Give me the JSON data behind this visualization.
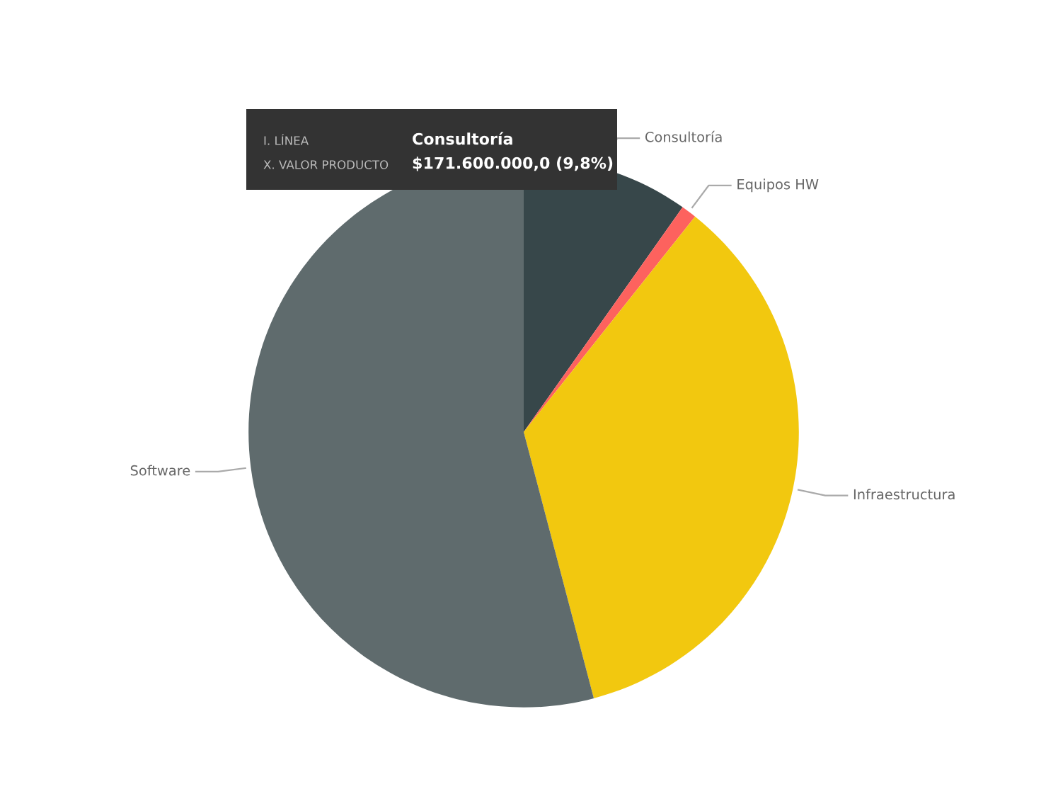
{
  "chart_data": {
    "type": "pie",
    "categories": [
      "Consultoría",
      "Equipos HW",
      "Infraestructura",
      "Software"
    ],
    "values": [
      9.8,
      0.9,
      35.2,
      54.1
    ],
    "colors": [
      "#37474a",
      "#fd625e",
      "#f2c80f",
      "#5f6b6d"
    ],
    "annotations": [
      "I. LÍNEA",
      "Consultoría",
      "X. VALOR PRODUCTO",
      "$171.600.000,0 (9,8%)"
    ]
  }
}
